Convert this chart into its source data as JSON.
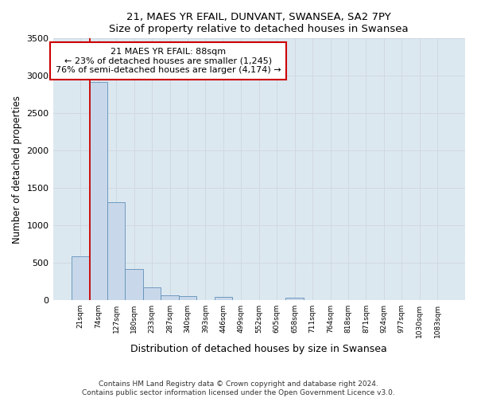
{
  "title": "21, MAES YR EFAIL, DUNVANT, SWANSEA, SA2 7PY",
  "subtitle": "Size of property relative to detached houses in Swansea",
  "xlabel": "Distribution of detached houses by size in Swansea",
  "ylabel": "Number of detached properties",
  "categories": [
    "21sqm",
    "74sqm",
    "127sqm",
    "180sqm",
    "233sqm",
    "287sqm",
    "340sqm",
    "393sqm",
    "446sqm",
    "499sqm",
    "552sqm",
    "605sqm",
    "658sqm",
    "711sqm",
    "764sqm",
    "818sqm",
    "871sqm",
    "924sqm",
    "977sqm",
    "1030sqm",
    "1083sqm"
  ],
  "bar_values": [
    580,
    2920,
    1310,
    415,
    170,
    65,
    50,
    0,
    40,
    0,
    0,
    0,
    30,
    0,
    0,
    0,
    0,
    0,
    0,
    0,
    0
  ],
  "bar_color": "#c8d8ea",
  "bar_edge_color": "#6090b8",
  "grid_color": "#d0d8e0",
  "bg_color": "#dce8f0",
  "marker_line_color": "#cc0000",
  "annotation_text": "21 MAES YR EFAIL: 88sqm\n← 23% of detached houses are smaller (1,245)\n76% of semi-detached houses are larger (4,174) →",
  "annotation_box_color": "#ffffff",
  "annotation_box_edge": "#cc0000",
  "ylim": [
    0,
    3500
  ],
  "yticks": [
    0,
    500,
    1000,
    1500,
    2000,
    2500,
    3000,
    3500
  ],
  "footer_line1": "Contains HM Land Registry data © Crown copyright and database right 2024.",
  "footer_line2": "Contains public sector information licensed under the Open Government Licence v3.0."
}
